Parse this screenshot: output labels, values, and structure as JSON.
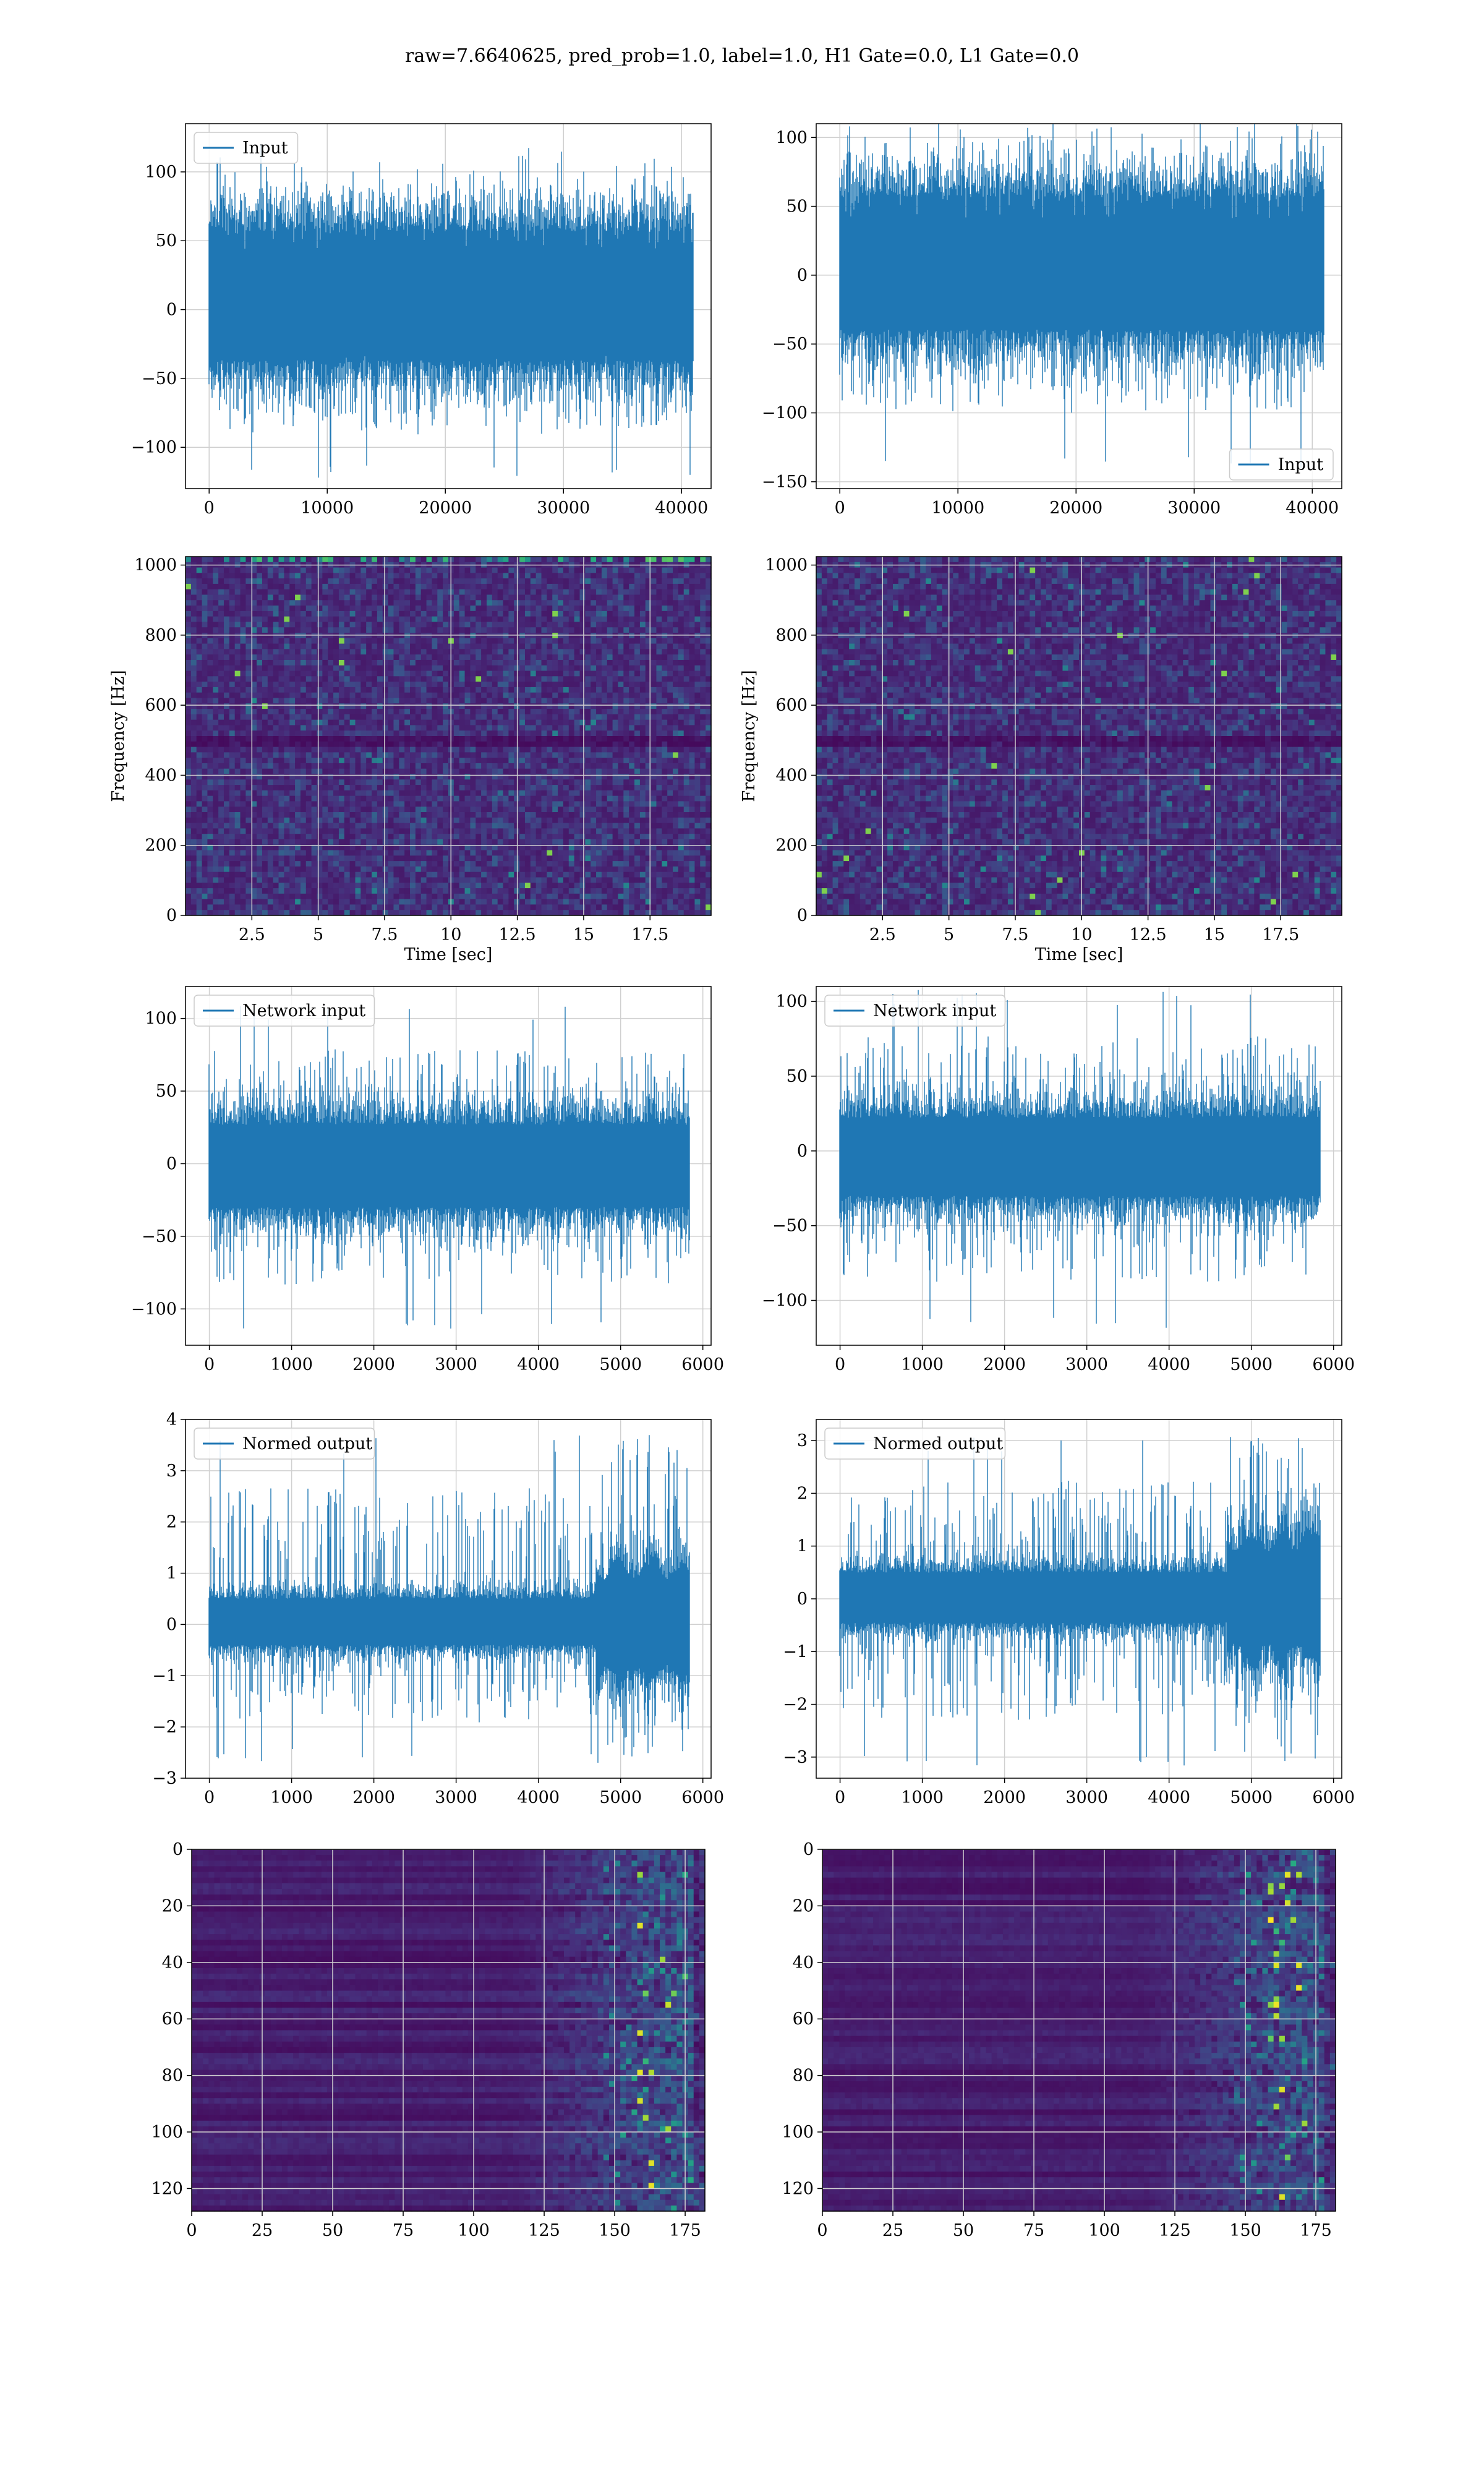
{
  "suptitle": "raw=7.6640625, pred_prob=1.0, label=1.0, H1 Gate=0.0, L1 Gate=0.0",
  "colors": {
    "line": "#1f77b4",
    "grid": "#d0d0d0",
    "viridis": [
      "#440154",
      "#472d7b",
      "#3b528b",
      "#2c728e",
      "#21918c",
      "#28ae80",
      "#5ec962",
      "#addc30",
      "#fde725"
    ]
  },
  "chart_data": [
    {
      "id": "input-h1",
      "type": "line",
      "legend": "Input",
      "legend_loc": "upper-left",
      "xlim": [
        -2000,
        42500
      ],
      "ylim": [
        -130,
        135
      ],
      "xticks": [
        0,
        10000,
        20000,
        30000,
        40000
      ],
      "yticks": [
        -100,
        -50,
        0,
        50,
        100
      ],
      "n": 40960,
      "band": [
        -42,
        62
      ],
      "extreme": [
        -125,
        115
      ],
      "grid": true
    },
    {
      "id": "input-l1",
      "type": "line",
      "legend": "Input",
      "legend_loc": "lower-right",
      "xlim": [
        -2000,
        42500
      ],
      "ylim": [
        -155,
        110
      ],
      "xticks": [
        0,
        10000,
        20000,
        30000,
        40000
      ],
      "yticks": [
        -150,
        -100,
        -50,
        0,
        50,
        100
      ],
      "n": 40960,
      "band": [
        -45,
        62
      ],
      "extreme": [
        -142,
        110
      ],
      "grid": true
    },
    {
      "id": "spec-h1",
      "type": "heatmap",
      "xlabel": "Time [sec]",
      "ylabel": "Frequency [Hz]",
      "xlim": [
        0,
        19.8
      ],
      "ylim": [
        0,
        1024
      ],
      "xticks": [
        2.5,
        5.0,
        7.5,
        10.0,
        12.5,
        15.0,
        17.5
      ],
      "yticks": [
        0,
        200,
        400,
        600,
        800,
        1000
      ],
      "grid": true
    },
    {
      "id": "spec-l1",
      "type": "heatmap",
      "xlabel": "Time [sec]",
      "ylabel": "Frequency [Hz]",
      "xlim": [
        0,
        19.8
      ],
      "ylim": [
        0,
        1024
      ],
      "xticks": [
        2.5,
        5.0,
        7.5,
        10.0,
        12.5,
        15.0,
        17.5
      ],
      "yticks": [
        0,
        200,
        400,
        600,
        800,
        1000
      ],
      "grid": true
    },
    {
      "id": "net-h1",
      "type": "line",
      "legend": "Network input",
      "legend_loc": "upper-left",
      "xlim": [
        -290,
        6100
      ],
      "ylim": [
        -125,
        122
      ],
      "xticks": [
        0,
        1000,
        2000,
        3000,
        4000,
        5000,
        6000
      ],
      "yticks": [
        -100,
        -50,
        0,
        50,
        100
      ],
      "n": 5832,
      "band": [
        -33,
        30
      ],
      "extreme": [
        -115,
        110
      ],
      "grid": true
    },
    {
      "id": "net-l1",
      "type": "line",
      "legend": "Network input",
      "legend_loc": "upper-left",
      "xlim": [
        -290,
        6100
      ],
      "ylim": [
        -130,
        110
      ],
      "xticks": [
        0,
        1000,
        2000,
        3000,
        4000,
        5000,
        6000
      ],
      "yticks": [
        -100,
        -50,
        0,
        50,
        100
      ],
      "n": 5832,
      "band": [
        -33,
        25
      ],
      "extreme": [
        -120,
        108
      ],
      "grid": true
    },
    {
      "id": "norm-h1",
      "type": "line",
      "legend": "Normed output",
      "legend_loc": "upper-left",
      "xlim": [
        -290,
        6100
      ],
      "ylim": [
        -3,
        4
      ],
      "xticks": [
        0,
        1000,
        2000,
        3000,
        4000,
        5000,
        6000
      ],
      "yticks": [
        -3,
        -2,
        -1,
        0,
        1,
        2,
        3,
        4
      ],
      "n": 5832,
      "band": [
        -0.45,
        0.55
      ],
      "extreme": [
        -2.7,
        3.7
      ],
      "burst": [
        4700,
        5800
      ],
      "grid": true
    },
    {
      "id": "norm-l1",
      "type": "line",
      "legend": "Normed output",
      "legend_loc": "upper-left",
      "xlim": [
        -290,
        6100
      ],
      "ylim": [
        -3.4,
        3.4
      ],
      "xticks": [
        0,
        1000,
        2000,
        3000,
        4000,
        5000,
        6000
      ],
      "yticks": [
        -3,
        -2,
        -1,
        0,
        1,
        2,
        3
      ],
      "n": 5832,
      "band": [
        -0.5,
        0.55
      ],
      "extreme": [
        -3.2,
        3.1
      ],
      "burst": [
        4700,
        5800
      ],
      "grid": true
    },
    {
      "id": "out-h1",
      "type": "heatmap",
      "xlim": [
        0,
        182
      ],
      "ylim": [
        0,
        128
      ],
      "xticks": [
        0,
        25,
        50,
        75,
        100,
        125,
        150,
        175
      ],
      "yticks": [
        0,
        20,
        40,
        60,
        80,
        100,
        120
      ],
      "y_inverted": true,
      "grid": true
    },
    {
      "id": "out-l1",
      "type": "heatmap",
      "xlim": [
        0,
        182
      ],
      "ylim": [
        0,
        128
      ],
      "xticks": [
        0,
        25,
        50,
        75,
        100,
        125,
        150,
        175
      ],
      "yticks": [
        0,
        20,
        40,
        60,
        80,
        100,
        120
      ],
      "y_inverted": true,
      "grid": true
    }
  ]
}
